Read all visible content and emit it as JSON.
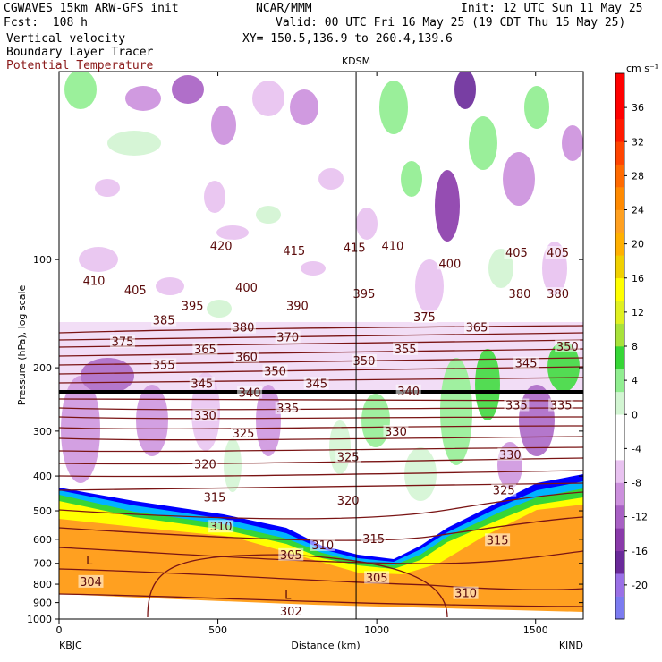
{
  "header": {
    "left": [
      "CGWAVES 15km ARW-GFS init",
      "Fcst:  108 h",
      "Vertical velocity",
      "Boundary Layer Tracer"
    ],
    "left_brown": "Potential Temperature",
    "center": "NCAR/MMM",
    "right_init": "Init: 12 UTC Sun 11 May 25",
    "right_valid": "Valid: 00 UTC Fri 16 May 25 (19 CDT Thu 15 May 25)",
    "xy": "XY= 150.5,136.9 to 260.4,139.6"
  },
  "chart_data": {
    "type": "heatmap",
    "title": "",
    "marker_label": "KDSM",
    "marker_x": 935,
    "xlabel": "Distance (km)",
    "ylabel": "Pressure (hPa), log scale",
    "x_ticks": [
      0,
      500,
      1000,
      1500
    ],
    "xlim": [
      0,
      1650
    ],
    "y_ticks": [
      100,
      200,
      300,
      400,
      500,
      600,
      700,
      800,
      900,
      1000
    ],
    "ylim": [
      1000,
      30
    ],
    "y_scale": "log",
    "endpoints": {
      "left": "KBJC",
      "right": "KIND"
    },
    "colorbar": {
      "unit": "cm s⁻¹",
      "ticks": [
        36,
        32,
        28,
        24,
        20,
        16,
        12,
        8,
        4,
        0,
        -4,
        -8,
        -12,
        -16,
        -20
      ],
      "colors": [
        "#7b7bf0",
        "#9a70e6",
        "#6a2a9a",
        "#8a3aaa",
        "#a860c4",
        "#cc90dd",
        "#e8c2f0",
        "#ffffff",
        "#ffffff",
        "#d2f5d2",
        "#90ee90",
        "#36d636",
        "#a8e23a",
        "#e0f020",
        "#ffff00",
        "#f0d000",
        "#ffb000",
        "#ffa020",
        "#ff8a00",
        "#ff6a00",
        "#ff4400",
        "#ff1a00",
        "#ff0000",
        "#ff0000"
      ]
    },
    "contour_labels": [
      {
        "text": "420",
        "x": 510,
        "p": 92
      },
      {
        "text": "415",
        "x": 740,
        "p": 95
      },
      {
        "text": "415",
        "x": 930,
        "p": 93
      },
      {
        "text": "410",
        "x": 1050,
        "p": 92
      },
      {
        "text": "410",
        "x": 110,
        "p": 115
      },
      {
        "text": "405",
        "x": 240,
        "p": 122
      },
      {
        "text": "400",
        "x": 590,
        "p": 120
      },
      {
        "text": "400",
        "x": 1230,
        "p": 103
      },
      {
        "text": "405",
        "x": 1440,
        "p": 96
      },
      {
        "text": "405",
        "x": 1570,
        "p": 96
      },
      {
        "text": "395",
        "x": 420,
        "p": 135
      },
      {
        "text": "390",
        "x": 750,
        "p": 135
      },
      {
        "text": "395",
        "x": 960,
        "p": 125
      },
      {
        "text": "380",
        "x": 1450,
        "p": 125
      },
      {
        "text": "380",
        "x": 1570,
        "p": 125
      },
      {
        "text": "385",
        "x": 330,
        "p": 148
      },
      {
        "text": "380",
        "x": 580,
        "p": 155
      },
      {
        "text": "375",
        "x": 1150,
        "p": 145
      },
      {
        "text": "365",
        "x": 1315,
        "p": 155
      },
      {
        "text": "375",
        "x": 200,
        "p": 170
      },
      {
        "text": "370",
        "x": 720,
        "p": 165
      },
      {
        "text": "365",
        "x": 460,
        "p": 178
      },
      {
        "text": "360",
        "x": 590,
        "p": 187
      },
      {
        "text": "355",
        "x": 1090,
        "p": 178
      },
      {
        "text": "350",
        "x": 1600,
        "p": 175
      },
      {
        "text": "355",
        "x": 330,
        "p": 197
      },
      {
        "text": "350",
        "x": 680,
        "p": 205
      },
      {
        "text": "350",
        "x": 960,
        "p": 192
      },
      {
        "text": "345",
        "x": 1470,
        "p": 195
      },
      {
        "text": "345",
        "x": 450,
        "p": 222
      },
      {
        "text": "345",
        "x": 810,
        "p": 222
      },
      {
        "text": "340",
        "x": 600,
        "p": 235
      },
      {
        "text": "340",
        "x": 1100,
        "p": 233
      },
      {
        "text": "335",
        "x": 720,
        "p": 260
      },
      {
        "text": "335",
        "x": 1440,
        "p": 255
      },
      {
        "text": "335",
        "x": 1580,
        "p": 255
      },
      {
        "text": "330",
        "x": 460,
        "p": 272
      },
      {
        "text": "325",
        "x": 580,
        "p": 305
      },
      {
        "text": "330",
        "x": 1060,
        "p": 302
      },
      {
        "text": "320",
        "x": 460,
        "p": 372
      },
      {
        "text": "325",
        "x": 910,
        "p": 355
      },
      {
        "text": "330",
        "x": 1420,
        "p": 350
      },
      {
        "text": "315",
        "x": 490,
        "p": 460
      },
      {
        "text": "320",
        "x": 910,
        "p": 470
      },
      {
        "text": "325",
        "x": 1400,
        "p": 440
      },
      {
        "text": "310",
        "x": 510,
        "p": 555
      },
      {
        "text": "310",
        "x": 830,
        "p": 625
      },
      {
        "text": "315",
        "x": 990,
        "p": 600
      },
      {
        "text": "315",
        "x": 1380,
        "p": 605
      },
      {
        "text": "305",
        "x": 730,
        "p": 665
      },
      {
        "text": "305",
        "x": 1000,
        "p": 770
      },
      {
        "text": "310",
        "x": 1280,
        "p": 850
      },
      {
        "text": "304",
        "x": 100,
        "p": 790
      },
      {
        "text": "302",
        "x": 730,
        "p": 955
      }
    ],
    "low_labels": [
      {
        "text": "L",
        "x": 95,
        "p": 690
      },
      {
        "text": "L",
        "x": 720,
        "p": 860
      }
    ]
  }
}
